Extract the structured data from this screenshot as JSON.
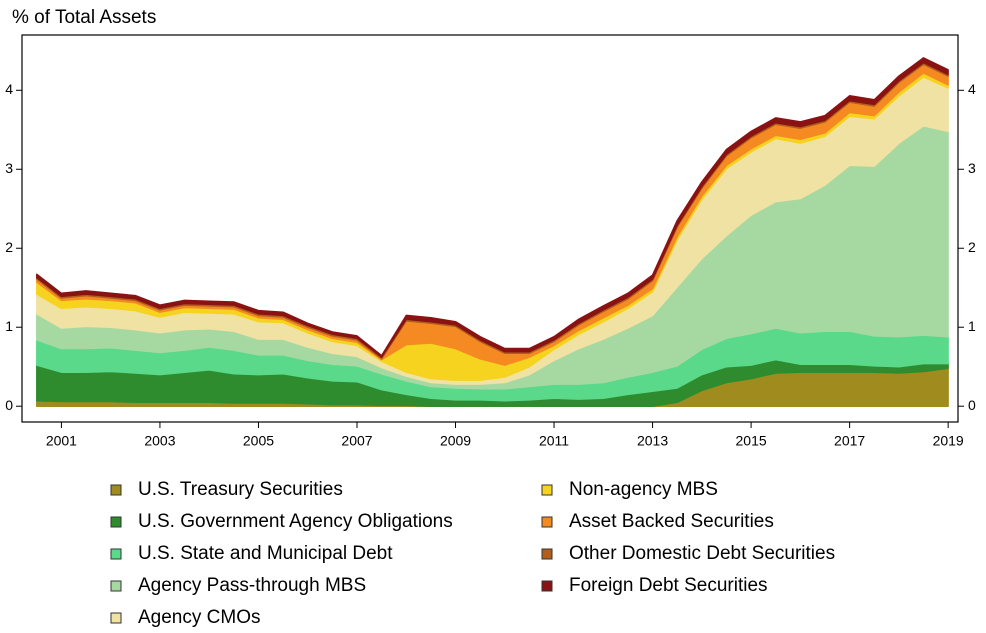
{
  "chart_data": {
    "type": "stacked_area",
    "y_label": "% of Total Assets",
    "x": [
      2000.5,
      2001,
      2001.5,
      2002,
      2002.5,
      2003,
      2003.5,
      2004,
      2004.5,
      2005,
      2005.5,
      2006,
      2006.5,
      2007,
      2007.5,
      2008,
      2008.5,
      2009,
      2009.5,
      2010,
      2010.5,
      2011,
      2011.5,
      2012,
      2012.5,
      2013,
      2013.5,
      2014,
      2014.5,
      2015,
      2015.5,
      2016,
      2016.5,
      2017,
      2017.5,
      2018,
      2018.5,
      2019
    ],
    "xlim": [
      2000.2,
      2019.2
    ],
    "xticks": [
      2001,
      2003,
      2005,
      2007,
      2009,
      2011,
      2013,
      2015,
      2017,
      2019
    ],
    "ylim": [
      -0.2,
      4.7
    ],
    "yticks": [
      0,
      1,
      2,
      3,
      4
    ],
    "series": [
      {
        "name": "U.S. Treasury Securities",
        "color": "#a08b1e",
        "values": [
          0.07,
          0.06,
          0.06,
          0.06,
          0.05,
          0.05,
          0.05,
          0.05,
          0.04,
          0.04,
          0.04,
          0.03,
          0.02,
          0.02,
          0.01,
          0.01,
          0,
          0,
          0,
          0,
          0,
          0,
          0,
          0,
          0,
          0,
          0.05,
          0.2,
          0.3,
          0.35,
          0.42,
          0.43,
          0.43,
          0.43,
          0.43,
          0.42,
          0.44,
          0.48
        ]
      },
      {
        "name": "U.S. Government Agency Obligations",
        "color": "#2e8b2e",
        "values": [
          0.45,
          0.37,
          0.37,
          0.38,
          0.37,
          0.35,
          0.38,
          0.41,
          0.37,
          0.36,
          0.37,
          0.33,
          0.3,
          0.29,
          0.2,
          0.14,
          0.1,
          0.08,
          0.08,
          0.07,
          0.08,
          0.1,
          0.09,
          0.1,
          0.15,
          0.19,
          0.18,
          0.2,
          0.2,
          0.17,
          0.17,
          0.1,
          0.1,
          0.1,
          0.08,
          0.08,
          0.1,
          0.06
        ]
      },
      {
        "name": "U.S. State and Municipal Debt",
        "color": "#5ad98a",
        "values": [
          0.32,
          0.3,
          0.3,
          0.3,
          0.29,
          0.28,
          0.28,
          0.29,
          0.3,
          0.25,
          0.24,
          0.22,
          0.21,
          0.2,
          0.2,
          0.17,
          0.15,
          0.15,
          0.14,
          0.15,
          0.17,
          0.18,
          0.19,
          0.2,
          0.22,
          0.24,
          0.28,
          0.32,
          0.36,
          0.4,
          0.4,
          0.4,
          0.42,
          0.42,
          0.38,
          0.38,
          0.36,
          0.34
        ]
      },
      {
        "name": "Agency Pass-through MBS",
        "color": "#a6d9a2",
        "values": [
          0.33,
          0.26,
          0.28,
          0.26,
          0.26,
          0.25,
          0.26,
          0.23,
          0.24,
          0.2,
          0.2,
          0.17,
          0.14,
          0.12,
          0.08,
          0.06,
          0.05,
          0.05,
          0.06,
          0.08,
          0.15,
          0.3,
          0.45,
          0.55,
          0.62,
          0.72,
          1.0,
          1.15,
          1.3,
          1.5,
          1.6,
          1.7,
          1.85,
          2.1,
          2.15,
          2.45,
          2.65,
          2.6
        ]
      },
      {
        "name": "Agency CMOs",
        "color": "#f0e2a2",
        "values": [
          0.25,
          0.25,
          0.25,
          0.24,
          0.24,
          0.2,
          0.22,
          0.2,
          0.22,
          0.22,
          0.21,
          0.18,
          0.15,
          0.14,
          0.08,
          0.05,
          0.05,
          0.05,
          0.05,
          0.07,
          0.1,
          0.14,
          0.18,
          0.22,
          0.25,
          0.3,
          0.6,
          0.75,
          0.85,
          0.8,
          0.8,
          0.7,
          0.62,
          0.62,
          0.6,
          0.6,
          0.62,
          0.55
        ]
      },
      {
        "name": "Non-agency MBS",
        "color": "#f5d31e",
        "values": [
          0.15,
          0.1,
          0.1,
          0.1,
          0.1,
          0.06,
          0.06,
          0.06,
          0.06,
          0.05,
          0.04,
          0.04,
          0.04,
          0.04,
          0.02,
          0.35,
          0.45,
          0.4,
          0.27,
          0.15,
          0.12,
          0.05,
          0.05,
          0.05,
          0.04,
          0.04,
          0.04,
          0.04,
          0.04,
          0.04,
          0.04,
          0.05,
          0.04,
          0.05,
          0.04,
          0.05,
          0.05,
          0.04
        ]
      },
      {
        "name": "Asset Backed Securities",
        "color": "#f58a22",
        "values": [
          0.04,
          0.03,
          0.04,
          0.03,
          0.03,
          0.03,
          0.03,
          0.03,
          0.03,
          0.03,
          0.03,
          0.03,
          0.03,
          0.03,
          0.01,
          0.3,
          0.25,
          0.28,
          0.22,
          0.15,
          0.05,
          0.05,
          0.07,
          0.08,
          0.08,
          0.1,
          0.12,
          0.1,
          0.12,
          0.14,
          0.14,
          0.14,
          0.14,
          0.13,
          0.12,
          0.12,
          0.11,
          0.11
        ]
      },
      {
        "name": "Other Domestic Debt Securities",
        "color": "#b0601c",
        "values": [
          0.02,
          0.02,
          0.02,
          0.02,
          0.02,
          0.02,
          0.02,
          0.02,
          0.02,
          0.02,
          0.02,
          0.02,
          0.02,
          0.02,
          0.02,
          0.02,
          0.02,
          0.02,
          0.02,
          0.02,
          0.02,
          0.02,
          0.02,
          0.02,
          0.02,
          0.02,
          0.02,
          0.02,
          0.02,
          0.02,
          0.02,
          0.02,
          0.02,
          0.02,
          0.02,
          0.02,
          0.02,
          0.02
        ]
      },
      {
        "name": "Foreign Debt Securities",
        "color": "#8b1212",
        "values": [
          0.04,
          0.04,
          0.04,
          0.04,
          0.04,
          0.04,
          0.04,
          0.04,
          0.04,
          0.04,
          0.04,
          0.03,
          0.03,
          0.03,
          0.02,
          0.05,
          0.05,
          0.04,
          0.04,
          0.04,
          0.04,
          0.04,
          0.05,
          0.05,
          0.05,
          0.05,
          0.06,
          0.06,
          0.06,
          0.06,
          0.06,
          0.06,
          0.06,
          0.06,
          0.06,
          0.06,
          0.06,
          0.06
        ]
      }
    ]
  }
}
